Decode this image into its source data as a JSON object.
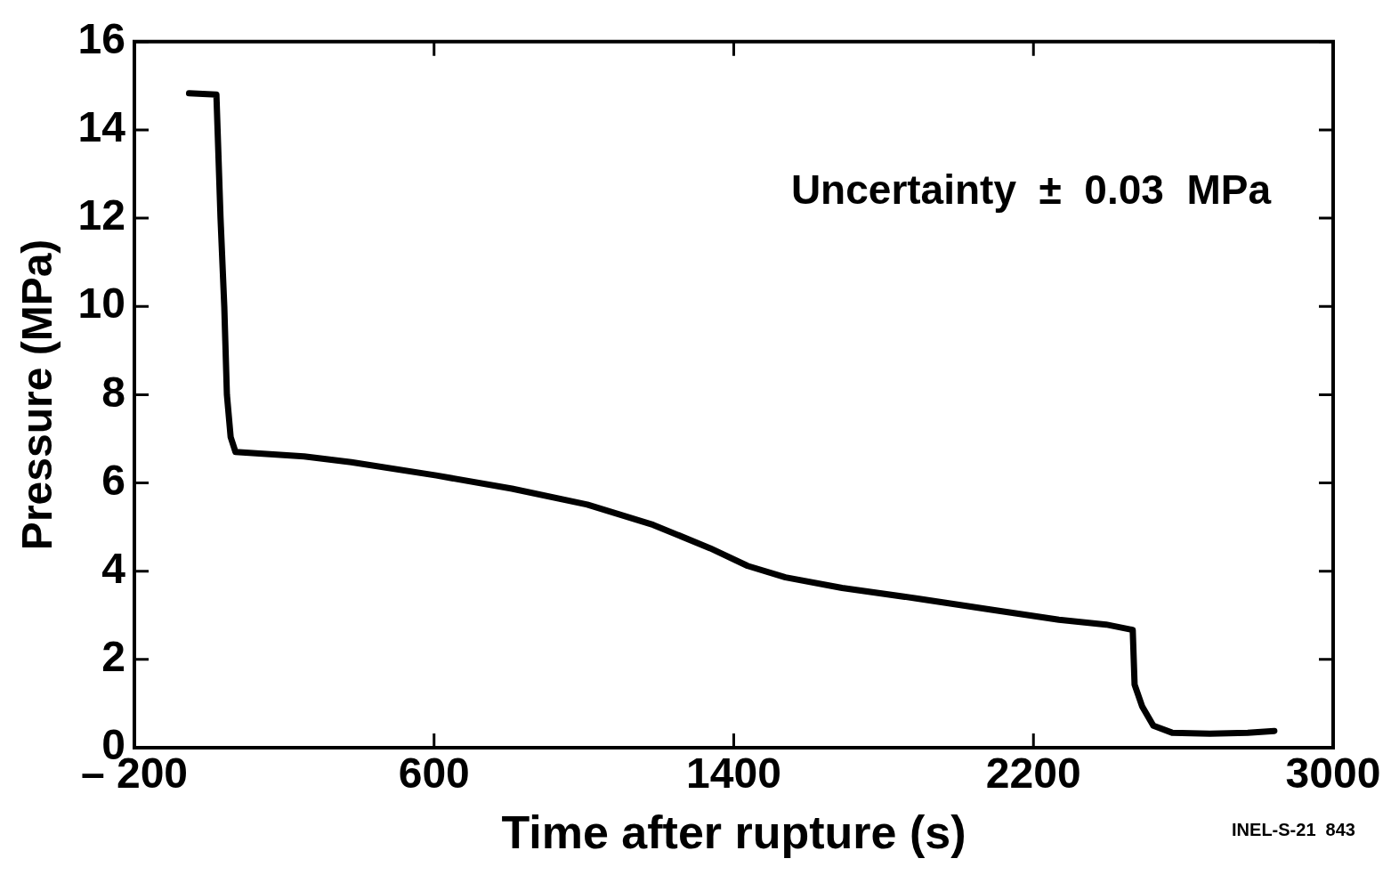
{
  "chart_data": {
    "type": "line",
    "xlabel": "Time after rupture (s)",
    "ylabel": "Pressure (MPa)",
    "annotations": [
      "Uncertainty  ±  0.03  MPa",
      "INEL-S-21  843"
    ],
    "xlim": [
      -200,
      3000
    ],
    "ylim": [
      0,
      16
    ],
    "xticks": [
      {
        "value": -200,
        "label": "– 200"
      },
      600,
      1400,
      2200,
      3000
    ],
    "yticks": [
      0,
      2,
      4,
      6,
      8,
      10,
      12,
      14,
      16
    ],
    "grid": false,
    "legend": false,
    "marker": "none",
    "line_style": "solid",
    "series": [
      {
        "color": "#000000",
        "x": [
          -54,
          19,
          30,
          40,
          47,
          57,
          70,
          253,
          379,
          606,
          808,
          1009,
          1185,
          1337,
          1437,
          1538,
          1689,
          1891,
          2092,
          2268,
          2394,
          2465,
          2470,
          2490,
          2520,
          2570,
          2671,
          2772,
          2843
        ],
        "values": [
          14.83,
          14.8,
          12,
          10,
          8,
          7.04,
          6.7,
          6.6,
          6.47,
          6.17,
          5.87,
          5.51,
          5.05,
          4.52,
          4.12,
          3.86,
          3.62,
          3.38,
          3.12,
          2.9,
          2.79,
          2.67,
          1.43,
          0.94,
          0.5,
          0.34,
          0.32,
          0.34,
          0.38
        ]
      }
    ]
  }
}
